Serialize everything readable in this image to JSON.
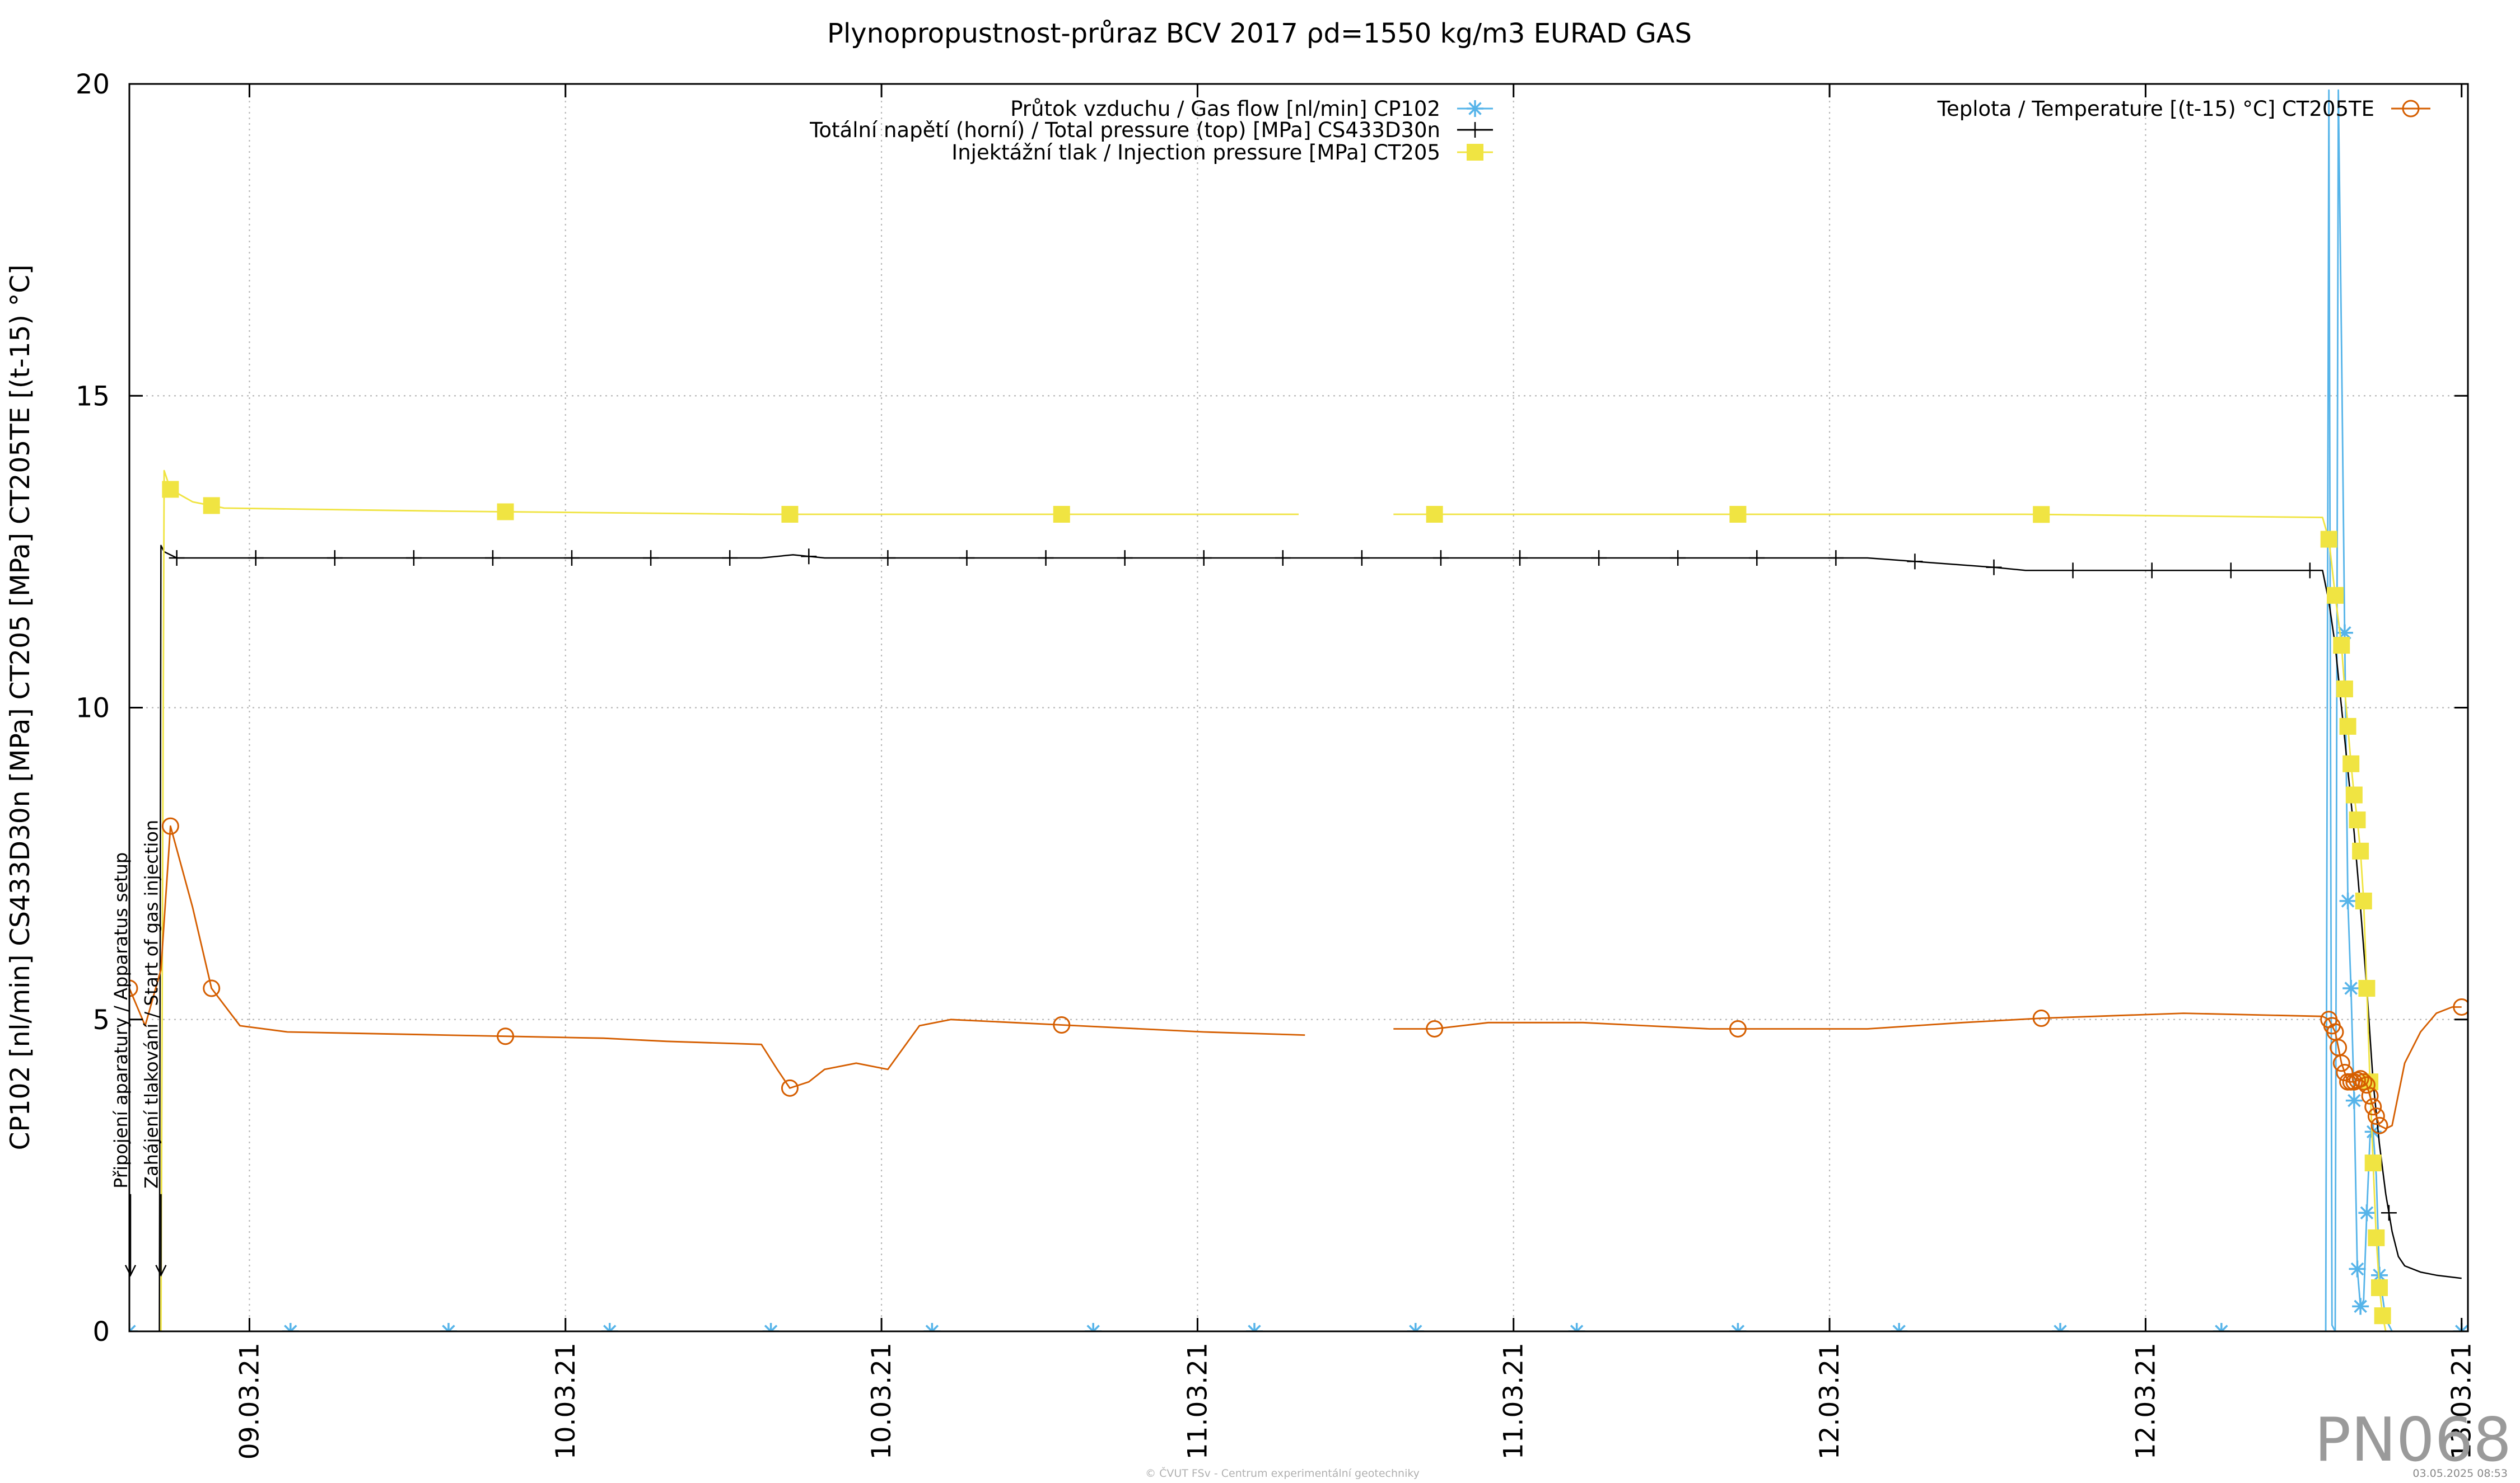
{
  "chart_data": {
    "type": "line",
    "title": "Plynopropustnost-průraz BCV 2017 ρd=1550 kg/m3 EURAD GAS",
    "ylabel": "CP102 [nl/min] CS433D30n [MPa] CT205 [MPa] CT205TE [(t-15) °C]",
    "xlabel": "",
    "ylim": [
      0,
      20
    ],
    "xlim": [
      0,
      7.4
    ],
    "grid": true,
    "legend_position": "top",
    "y_ticks": [
      {
        "v": 0,
        "label": "0"
      },
      {
        "v": 5,
        "label": "5"
      },
      {
        "v": 10,
        "label": "10"
      },
      {
        "v": 15,
        "label": "15"
      },
      {
        "v": 20,
        "label": "20"
      }
    ],
    "x_ticks": [
      {
        "v": 0.38,
        "label": "09.03.21"
      },
      {
        "v": 1.38,
        "label": "10.03.21"
      },
      {
        "v": 2.38,
        "label": "10.03.21"
      },
      {
        "v": 3.38,
        "label": "11.03.21"
      },
      {
        "v": 4.38,
        "label": "11.03.21"
      },
      {
        "v": 5.38,
        "label": "12.03.21"
      },
      {
        "v": 6.38,
        "label": "12.03.21"
      },
      {
        "v": 7.38,
        "label": "13.03.21"
      }
    ],
    "annotations": [
      {
        "x": 0.0,
        "text": "Připojení aparatury / Apparatus setup",
        "arrow_from_y": 2.2,
        "arrow_to_y": 0.9
      },
      {
        "x": 0.1,
        "text": "Zahájení tlakování / Start of gas injection",
        "arrow_from_y": 2.2,
        "arrow_to_y": 0.9
      }
    ],
    "watermark": "PN068",
    "footer": "© ČVUT FSv - Centrum experimentální geotechniky",
    "footer_date": "03.05.2025 08:53",
    "series": [
      {
        "name": "Průtok vzduchu / Gas flow [nl/min] CP102",
        "color": "#56b4e9",
        "marker": "asterisk",
        "x": [
          0.0,
          0.1,
          6.95,
          6.96,
          6.97,
          6.98,
          6.99,
          7.0,
          7.01,
          7.02,
          7.03,
          7.04,
          7.05,
          7.06,
          7.07,
          7.08,
          7.09,
          7.1,
          7.11,
          7.12,
          7.14,
          7.16,
          7.18,
          7.2,
          7.25,
          7.3,
          7.38
        ],
        "y": [
          0.0,
          0.0,
          0.0,
          19.9,
          0.1,
          0.0,
          19.9,
          15.8,
          11.2,
          6.9,
          5.5,
          3.7,
          1.0,
          0.4,
          0.5,
          1.9,
          3.1,
          3.2,
          2.5,
          0.9,
          0.2,
          0.0,
          0.0,
          0.0,
          0.0,
          0.0,
          0.0
        ],
        "markers_x": [
          0.0,
          0.51,
          1.01,
          1.52,
          2.03,
          2.54,
          3.05,
          3.56,
          4.07,
          4.58,
          5.09,
          5.6,
          6.11,
          6.62,
          7.01,
          7.02,
          7.03,
          7.04,
          7.05,
          7.06,
          7.08,
          7.1,
          7.12,
          7.38
        ]
      },
      {
        "name": "Totální napětí (horní) / Total pressure (top) [MPa] CS433D30n",
        "color": "#000000",
        "marker": "plus",
        "x": [
          0.0,
          0.095,
          0.1,
          0.11,
          0.15,
          0.3,
          1.0,
          2.0,
          2.1,
          2.2,
          3.0,
          3.7,
          4.0,
          5.0,
          5.5,
          5.9,
          6.0,
          6.5,
          6.94,
          6.96,
          6.98,
          7.0,
          7.02,
          7.04,
          7.06,
          7.08,
          7.1,
          7.12,
          7.14,
          7.16,
          7.18,
          7.2,
          7.25,
          7.3,
          7.38
        ],
        "y": [
          0.0,
          0.0,
          12.6,
          12.5,
          12.4,
          12.4,
          12.4,
          12.4,
          12.45,
          12.4,
          12.4,
          12.4,
          12.4,
          12.4,
          12.4,
          12.25,
          12.2,
          12.2,
          12.2,
          11.7,
          11.0,
          10.0,
          9.0,
          8.0,
          6.8,
          5.5,
          4.0,
          3.0,
          2.2,
          1.6,
          1.2,
          1.05,
          0.95,
          0.9,
          0.85
        ]
      },
      {
        "name": "Injektážní tlak / Injection pressure [MPa] CT205",
        "color": "#f0e442",
        "marker": "square",
        "x": [
          0.1,
          0.11,
          0.13,
          0.2,
          0.3,
          1.0,
          2.0,
          3.0,
          3.7,
          4.0,
          5.0,
          6.0,
          6.94,
          6.96,
          6.98,
          7.0,
          7.01,
          7.02,
          7.03,
          7.04,
          7.05,
          7.06,
          7.07,
          7.08,
          7.09,
          7.1,
          7.11,
          7.12,
          7.13,
          7.14,
          7.15,
          7.16,
          7.17,
          7.18,
          7.19,
          7.2,
          7.22
        ],
        "y": [
          0.0,
          13.8,
          13.5,
          13.3,
          13.2,
          13.15,
          13.1,
          13.1,
          13.1,
          13.1,
          13.1,
          13.1,
          13.05,
          12.7,
          11.8,
          11.0,
          10.3,
          9.7,
          9.1,
          8.6,
          8.2,
          7.7,
          6.9,
          5.5,
          4.0,
          2.7,
          1.5,
          0.7,
          0.25,
          0.0,
          0.0,
          0.0,
          0.0,
          0.0,
          0.0,
          0.0,
          0.0
        ],
        "gap": [
          3.72,
          4.0
        ],
        "markers_x": [
          0.13,
          0.26,
          1.19,
          2.09,
          2.95,
          4.13,
          5.09,
          6.05,
          6.96,
          6.98,
          7.0,
          7.01,
          7.02,
          7.03,
          7.04,
          7.05,
          7.06,
          7.07,
          7.08,
          7.09,
          7.1,
          7.11,
          7.12,
          7.13
        ]
      },
      {
        "name": "Teplota / Temperature [(t-15) °C] CT205TE",
        "color": "#d55e00",
        "marker": "circle",
        "x": [
          0.0,
          0.05,
          0.1,
          0.13,
          0.2,
          0.26,
          0.35,
          0.5,
          1.0,
          1.5,
          1.7,
          2.0,
          2.05,
          2.09,
          2.15,
          2.2,
          2.3,
          2.4,
          2.5,
          2.6,
          2.8,
          3.0,
          3.2,
          3.4,
          3.72,
          4.0,
          4.13,
          4.3,
          4.6,
          5.0,
          5.09,
          5.5,
          5.8,
          6.05,
          6.5,
          6.94,
          6.96,
          6.98,
          7.0,
          7.02,
          7.04,
          7.06,
          7.08,
          7.1,
          7.12,
          7.14,
          7.16,
          7.18,
          7.2,
          7.25,
          7.3,
          7.35,
          7.38
        ],
        "y": [
          5.5,
          4.9,
          5.8,
          8.1,
          6.8,
          5.5,
          4.9,
          4.8,
          4.75,
          4.7,
          4.65,
          4.6,
          4.2,
          3.9,
          4.0,
          4.2,
          4.3,
          4.2,
          4.9,
          5.0,
          4.95,
          4.9,
          4.85,
          4.8,
          4.75,
          4.85,
          4.85,
          4.95,
          4.95,
          4.85,
          4.85,
          4.85,
          4.95,
          5.02,
          5.1,
          5.05,
          5.0,
          4.8,
          4.3,
          4.0,
          4.0,
          4.05,
          3.95,
          3.6,
          3.3,
          3.25,
          3.3,
          3.8,
          4.3,
          4.8,
          5.1,
          5.2,
          5.2
        ],
        "gap": [
          3.72,
          4.0
        ],
        "markers_x": [
          0.0,
          0.13,
          0.26,
          1.19,
          2.09,
          2.95,
          4.13,
          5.09,
          6.05,
          6.96,
          6.97,
          6.98,
          6.99,
          7.0,
          7.01,
          7.02,
          7.03,
          7.04,
          7.05,
          7.06,
          7.07,
          7.08,
          7.09,
          7.1,
          7.11,
          7.12,
          7.38
        ]
      }
    ]
  }
}
